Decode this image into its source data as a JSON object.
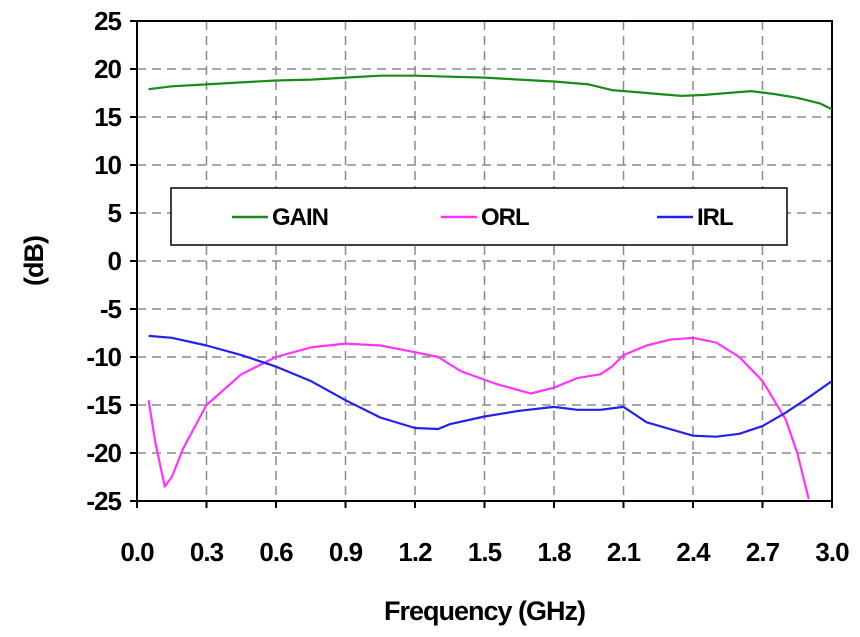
{
  "chart_data": {
    "type": "line",
    "title": "",
    "xlabel": "Frequency (GHz)",
    "ylabel": "(dB)",
    "xlim": [
      0.0,
      3.0
    ],
    "ylim": [
      -25,
      25
    ],
    "x_ticks": [
      "0.0",
      "0.3",
      "0.6",
      "0.9",
      "1.2",
      "1.5",
      "1.8",
      "2.1",
      "2.4",
      "2.7",
      "3.0"
    ],
    "y_ticks": [
      "25",
      "20",
      "15",
      "10",
      "5",
      "0",
      "-5",
      "-10",
      "-15",
      "-20",
      "-25"
    ],
    "grid": true,
    "legend_position": "upper-center",
    "series": [
      {
        "name": "GAIN",
        "color": "#1a8a1a",
        "x": [
          0.05,
          0.15,
          0.3,
          0.45,
          0.6,
          0.75,
          0.9,
          1.05,
          1.2,
          1.35,
          1.5,
          1.65,
          1.8,
          1.95,
          2.05,
          2.15,
          2.25,
          2.35,
          2.45,
          2.55,
          2.65,
          2.75,
          2.85,
          2.95,
          3.0
        ],
        "y": [
          17.9,
          18.2,
          18.4,
          18.6,
          18.8,
          18.9,
          19.1,
          19.3,
          19.3,
          19.2,
          19.1,
          18.9,
          18.7,
          18.4,
          17.8,
          17.6,
          17.4,
          17.2,
          17.3,
          17.5,
          17.7,
          17.4,
          17.0,
          16.4,
          15.8
        ]
      },
      {
        "name": "ORL",
        "color": "#ff33ff",
        "x": [
          0.05,
          0.08,
          0.12,
          0.15,
          0.2,
          0.3,
          0.45,
          0.6,
          0.75,
          0.9,
          1.05,
          1.2,
          1.3,
          1.4,
          1.55,
          1.7,
          1.8,
          1.9,
          2.0,
          2.05,
          2.1,
          2.2,
          2.3,
          2.4,
          2.5,
          2.6,
          2.7,
          2.8,
          2.85,
          2.9
        ],
        "y": [
          -14.5,
          -19.0,
          -23.5,
          -22.5,
          -19.5,
          -15.0,
          -11.8,
          -10.0,
          -9.0,
          -8.6,
          -8.8,
          -9.5,
          -10.0,
          -11.5,
          -12.8,
          -13.8,
          -13.2,
          -12.2,
          -11.8,
          -11.0,
          -9.8,
          -8.8,
          -8.2,
          -8.0,
          -8.5,
          -10.0,
          -12.5,
          -16.5,
          -20.0,
          -24.8
        ]
      },
      {
        "name": "IRL",
        "color": "#2222ee",
        "x": [
          0.05,
          0.15,
          0.3,
          0.45,
          0.6,
          0.75,
          0.9,
          1.05,
          1.2,
          1.3,
          1.35,
          1.5,
          1.65,
          1.8,
          1.9,
          2.0,
          2.1,
          2.2,
          2.3,
          2.4,
          2.5,
          2.6,
          2.7,
          2.8,
          2.9,
          3.0
        ],
        "y": [
          -7.8,
          -8.0,
          -8.8,
          -9.8,
          -11.0,
          -12.5,
          -14.5,
          -16.3,
          -17.4,
          -17.5,
          -17.0,
          -16.2,
          -15.6,
          -15.2,
          -15.5,
          -15.5,
          -15.2,
          -16.8,
          -17.5,
          -18.2,
          -18.3,
          -18.0,
          -17.2,
          -15.8,
          -14.2,
          -12.5
        ]
      }
    ]
  }
}
